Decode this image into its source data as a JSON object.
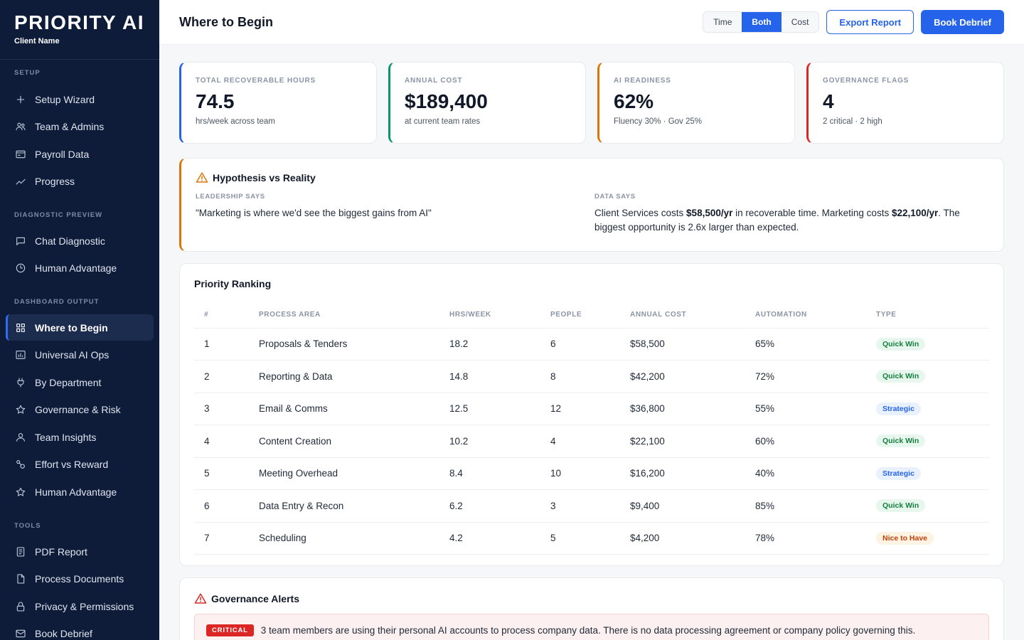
{
  "brand": {
    "title": "PRIORITY AI",
    "subtitle": "Client Name"
  },
  "sidebar": {
    "sections": [
      {
        "label": "SETUP",
        "items": [
          {
            "label": "Setup Wizard",
            "icon": "plus-icon"
          },
          {
            "label": "Team & Admins",
            "icon": "users-icon"
          },
          {
            "label": "Payroll Data",
            "icon": "wallet-icon"
          },
          {
            "label": "Progress",
            "icon": "trend-icon"
          }
        ]
      },
      {
        "label": "DIAGNOSTIC PREVIEW",
        "items": [
          {
            "label": "Chat Diagnostic",
            "icon": "chat-icon"
          },
          {
            "label": "Human Advantage",
            "icon": "clock-icon"
          }
        ]
      },
      {
        "label": "DASHBOARD OUTPUT",
        "items": [
          {
            "label": "Where to Begin",
            "icon": "grid-icon",
            "active": true
          },
          {
            "label": "Universal AI Ops",
            "icon": "chart-box-icon"
          },
          {
            "label": "By Department",
            "icon": "plug-icon"
          },
          {
            "label": "Governance & Risk",
            "icon": "star-icon"
          },
          {
            "label": "Team Insights",
            "icon": "user-icon"
          },
          {
            "label": "Effort vs Reward",
            "icon": "balance-icon"
          },
          {
            "label": "Human Advantage",
            "icon": "star-icon"
          }
        ]
      },
      {
        "label": "TOOLS",
        "items": [
          {
            "label": "PDF Report",
            "icon": "report-icon"
          },
          {
            "label": "Process Documents",
            "icon": "document-icon"
          },
          {
            "label": "Privacy & Permissions",
            "icon": "lock-icon"
          },
          {
            "label": "Book Debrief",
            "icon": "mail-icon"
          }
        ]
      }
    ]
  },
  "header": {
    "title": "Where to Begin",
    "toggle": [
      "Time",
      "Both",
      "Cost"
    ],
    "toggle_selected": "Both",
    "export_label": "Export Report",
    "book_label": "Book Debrief"
  },
  "kpis": [
    {
      "label": "TOTAL RECOVERABLE HOURS",
      "value": "74.5",
      "sub": "hrs/week across team",
      "color": "#2563eb"
    },
    {
      "label": "ANNUAL COST",
      "value": "$189,400",
      "sub": "at current team rates",
      "color": "#059669"
    },
    {
      "label": "AI READINESS",
      "value": "62%",
      "sub": "Fluency 30% · Gov 25%",
      "color": "#d97706"
    },
    {
      "label": "GOVERNANCE FLAGS",
      "value": "4",
      "sub": "2 critical · 2 high",
      "color": "#dc2626"
    }
  ],
  "hypothesis": {
    "title": "Hypothesis vs Reality",
    "leadership_label": "LEADERSHIP SAYS",
    "leadership_text": "\"Marketing is where we'd see the biggest gains from AI\"",
    "data_label": "DATA SAYS",
    "data_parts": [
      "Client Services costs ",
      "$58,500/yr",
      " in recoverable time. Marketing costs ",
      "$22,100/yr",
      ". The biggest opportunity is 2.6x larger than expected."
    ]
  },
  "ranking": {
    "title": "Priority Ranking",
    "columns": [
      "#",
      "PROCESS AREA",
      "HRS/WEEK",
      "PEOPLE",
      "ANNUAL COST",
      "AUTOMATION",
      "TYPE"
    ],
    "rows": [
      [
        "1",
        "Proposals & Tenders",
        "18.2",
        "6",
        "$58,500",
        "65%",
        "Quick Win"
      ],
      [
        "2",
        "Reporting & Data",
        "14.8",
        "8",
        "$42,200",
        "72%",
        "Quick Win"
      ],
      [
        "3",
        "Email & Comms",
        "12.5",
        "12",
        "$36,800",
        "55%",
        "Strategic"
      ],
      [
        "4",
        "Content Creation",
        "10.2",
        "4",
        "$22,100",
        "60%",
        "Quick Win"
      ],
      [
        "5",
        "Meeting Overhead",
        "8.4",
        "10",
        "$16,200",
        "40%",
        "Strategic"
      ],
      [
        "6",
        "Data Entry & Recon",
        "6.2",
        "3",
        "$9,400",
        "85%",
        "Quick Win"
      ],
      [
        "7",
        "Scheduling",
        "4.2",
        "5",
        "$4,200",
        "78%",
        "Nice to Have"
      ]
    ]
  },
  "governance": {
    "title": "Governance Alerts",
    "alert_level": "CRITICAL",
    "alert_text": "3 team members are using their personal AI accounts to process company data. There is no data processing agreement or company policy governing this."
  }
}
